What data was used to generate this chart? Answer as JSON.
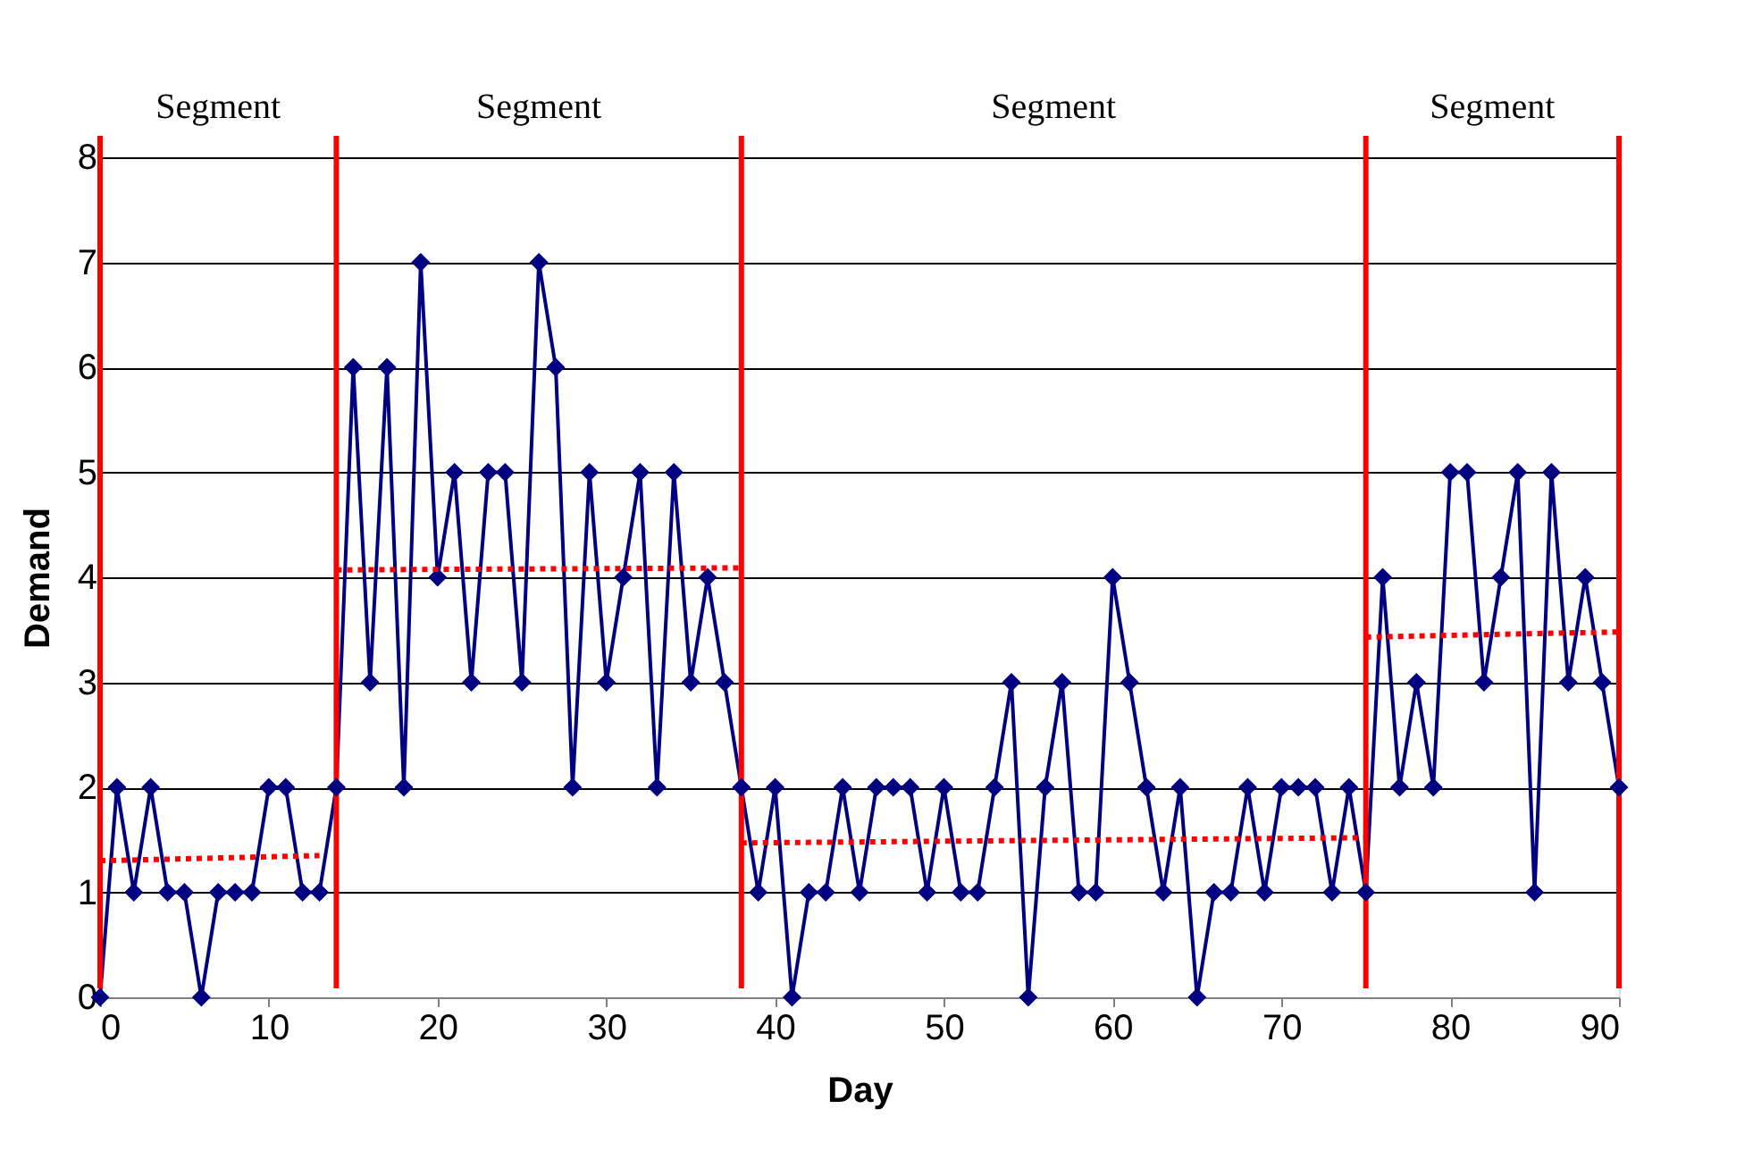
{
  "chart_data": {
    "type": "line",
    "xlabel": "Day",
    "ylabel": "Demand",
    "annotations": [
      "Segment",
      "Segment",
      "Segment",
      "Segment"
    ],
    "xlim": [
      0,
      90
    ],
    "xticks": [
      0,
      10,
      20,
      30,
      40,
      50,
      60,
      70,
      80,
      90
    ],
    "ylim": [
      0,
      8
    ],
    "yticks": [
      0,
      1,
      2,
      3,
      4,
      5,
      6,
      7,
      8
    ],
    "grid": "y",
    "marker": "diamond",
    "line_style": "solid",
    "x": [
      0,
      1,
      2,
      3,
      4,
      5,
      6,
      7,
      8,
      9,
      10,
      11,
      12,
      13,
      14,
      15,
      16,
      17,
      18,
      19,
      20,
      21,
      22,
      23,
      24,
      25,
      26,
      27,
      28,
      29,
      30,
      31,
      32,
      33,
      34,
      35,
      36,
      37,
      38,
      39,
      40,
      41,
      42,
      43,
      44,
      45,
      46,
      47,
      48,
      49,
      50,
      51,
      52,
      53,
      54,
      55,
      56,
      57,
      58,
      59,
      60,
      61,
      62,
      63,
      64,
      65,
      66,
      67,
      68,
      69,
      70,
      71,
      72,
      73,
      74,
      75,
      76,
      77,
      78,
      79,
      80,
      81,
      82,
      83,
      84,
      85,
      86,
      87,
      88,
      89,
      90
    ],
    "series": [
      {
        "color": "#000080",
        "values": [
          0,
          2,
          1,
          2,
          1,
          1,
          0,
          1,
          1,
          1,
          2,
          2,
          1,
          1,
          2,
          6,
          3,
          6,
          2,
          7,
          4,
          5,
          3,
          5,
          5,
          3,
          7,
          6,
          2,
          5,
          3,
          4,
          5,
          2,
          5,
          3,
          4,
          3,
          2,
          1,
          2,
          0,
          1,
          1,
          2,
          1,
          2,
          2,
          2,
          1,
          2,
          1,
          1,
          2,
          3,
          0,
          2,
          3,
          1,
          1,
          4,
          3,
          2,
          1,
          2,
          0,
          1,
          1,
          2,
          1,
          2,
          2,
          2,
          1,
          2,
          1,
          4,
          2,
          3,
          2,
          5,
          5,
          3,
          4,
          5,
          1,
          5,
          3,
          4,
          3,
          2
        ]
      },
      {
        "type": "line",
        "color": "#ff0000",
        "line_style": "dotted",
        "marker": "none",
        "x": [
          0,
          13
        ],
        "values": [
          1.3,
          1.35
        ]
      },
      {
        "type": "line",
        "color": "#ff0000",
        "line_style": "dotted",
        "marker": "none",
        "x": [
          14,
          38
        ],
        "values": [
          4.07,
          4.09
        ]
      },
      {
        "type": "line",
        "color": "#ff0000",
        "line_style": "dotted",
        "marker": "none",
        "x": [
          38,
          75
        ],
        "values": [
          1.47,
          1.52
        ]
      },
      {
        "type": "line",
        "color": "#ff0000",
        "line_style": "dotted",
        "marker": "none",
        "x": [
          75,
          90
        ],
        "values": [
          3.43,
          3.48
        ]
      }
    ],
    "ref_lines": [
      {
        "axis": "x",
        "value": 0,
        "color": "#ff0000",
        "line_style": "solid"
      },
      {
        "axis": "x",
        "value": 14,
        "color": "#ff0000",
        "line_style": "solid"
      },
      {
        "axis": "x",
        "value": 38,
        "color": "#ff0000",
        "line_style": "solid"
      },
      {
        "axis": "x",
        "value": 75,
        "color": "#ff0000",
        "line_style": "solid"
      },
      {
        "axis": "x",
        "value": 90,
        "color": "#ff0000",
        "line_style": "solid"
      }
    ]
  }
}
